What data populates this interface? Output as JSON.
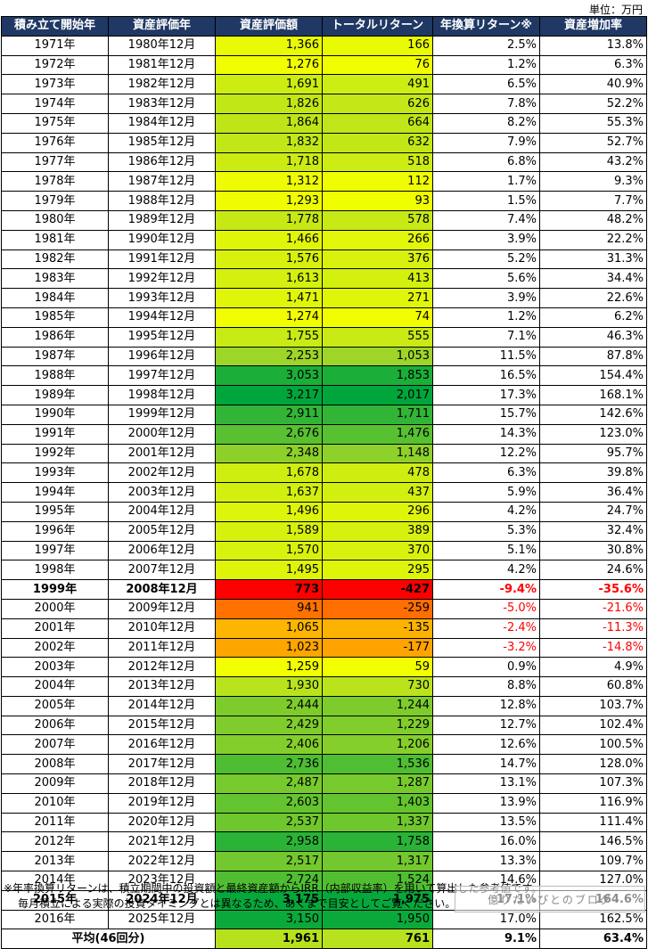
{
  "unit_label": "単位：万円",
  "colors": {
    "header_bg": "#1f3864",
    "negative_text": "#ff0000"
  },
  "chart_data": {
    "type": "table",
    "columns": [
      "積み立て開始年",
      "資産評価年",
      "資産評価額",
      "トータルリターン",
      "年換算リターン※",
      "資産増加率"
    ],
    "rows": [
      {
        "start": "1971年",
        "eval": "1980年12月",
        "value": 1366,
        "ret": 166,
        "annual": "2.5%",
        "growth": "13.8%",
        "bold": false
      },
      {
        "start": "1972年",
        "eval": "1981年12月",
        "value": 1276,
        "ret": 76,
        "annual": "1.2%",
        "growth": "6.3%",
        "bold": false
      },
      {
        "start": "1973年",
        "eval": "1982年12月",
        "value": 1691,
        "ret": 491,
        "annual": "6.5%",
        "growth": "40.9%",
        "bold": false
      },
      {
        "start": "1974年",
        "eval": "1983年12月",
        "value": 1826,
        "ret": 626,
        "annual": "7.8%",
        "growth": "52.2%",
        "bold": false
      },
      {
        "start": "1975年",
        "eval": "1984年12月",
        "value": 1864,
        "ret": 664,
        "annual": "8.2%",
        "growth": "55.3%",
        "bold": false
      },
      {
        "start": "1976年",
        "eval": "1985年12月",
        "value": 1832,
        "ret": 632,
        "annual": "7.9%",
        "growth": "52.7%",
        "bold": false
      },
      {
        "start": "1977年",
        "eval": "1986年12月",
        "value": 1718,
        "ret": 518,
        "annual": "6.8%",
        "growth": "43.2%",
        "bold": false
      },
      {
        "start": "1978年",
        "eval": "1987年12月",
        "value": 1312,
        "ret": 112,
        "annual": "1.7%",
        "growth": "9.3%",
        "bold": false
      },
      {
        "start": "1979年",
        "eval": "1988年12月",
        "value": 1293,
        "ret": 93,
        "annual": "1.5%",
        "growth": "7.7%",
        "bold": false
      },
      {
        "start": "1980年",
        "eval": "1989年12月",
        "value": 1778,
        "ret": 578,
        "annual": "7.4%",
        "growth": "48.2%",
        "bold": false
      },
      {
        "start": "1981年",
        "eval": "1990年12月",
        "value": 1466,
        "ret": 266,
        "annual": "3.9%",
        "growth": "22.2%",
        "bold": false
      },
      {
        "start": "1982年",
        "eval": "1991年12月",
        "value": 1576,
        "ret": 376,
        "annual": "5.2%",
        "growth": "31.3%",
        "bold": false
      },
      {
        "start": "1983年",
        "eval": "1992年12月",
        "value": 1613,
        "ret": 413,
        "annual": "5.6%",
        "growth": "34.4%",
        "bold": false
      },
      {
        "start": "1984年",
        "eval": "1993年12月",
        "value": 1471,
        "ret": 271,
        "annual": "3.9%",
        "growth": "22.6%",
        "bold": false
      },
      {
        "start": "1985年",
        "eval": "1994年12月",
        "value": 1274,
        "ret": 74,
        "annual": "1.2%",
        "growth": "6.2%",
        "bold": false
      },
      {
        "start": "1986年",
        "eval": "1995年12月",
        "value": 1755,
        "ret": 555,
        "annual": "7.1%",
        "growth": "46.3%",
        "bold": false
      },
      {
        "start": "1987年",
        "eval": "1996年12月",
        "value": 2253,
        "ret": 1053,
        "annual": "11.5%",
        "growth": "87.8%",
        "bold": false
      },
      {
        "start": "1988年",
        "eval": "1997年12月",
        "value": 3053,
        "ret": 1853,
        "annual": "16.5%",
        "growth": "154.4%",
        "bold": false
      },
      {
        "start": "1989年",
        "eval": "1998年12月",
        "value": 3217,
        "ret": 2017,
        "annual": "17.3%",
        "growth": "168.1%",
        "bold": false
      },
      {
        "start": "1990年",
        "eval": "1999年12月",
        "value": 2911,
        "ret": 1711,
        "annual": "15.7%",
        "growth": "142.6%",
        "bold": false
      },
      {
        "start": "1991年",
        "eval": "2000年12月",
        "value": 2676,
        "ret": 1476,
        "annual": "14.3%",
        "growth": "123.0%",
        "bold": false
      },
      {
        "start": "1992年",
        "eval": "2001年12月",
        "value": 2348,
        "ret": 1148,
        "annual": "12.2%",
        "growth": "95.7%",
        "bold": false
      },
      {
        "start": "1993年",
        "eval": "2002年12月",
        "value": 1678,
        "ret": 478,
        "annual": "6.3%",
        "growth": "39.8%",
        "bold": false
      },
      {
        "start": "1994年",
        "eval": "2003年12月",
        "value": 1637,
        "ret": 437,
        "annual": "5.9%",
        "growth": "36.4%",
        "bold": false
      },
      {
        "start": "1995年",
        "eval": "2004年12月",
        "value": 1496,
        "ret": 296,
        "annual": "4.2%",
        "growth": "24.7%",
        "bold": false
      },
      {
        "start": "1996年",
        "eval": "2005年12月",
        "value": 1589,
        "ret": 389,
        "annual": "5.3%",
        "growth": "32.4%",
        "bold": false
      },
      {
        "start": "1997年",
        "eval": "2006年12月",
        "value": 1570,
        "ret": 370,
        "annual": "5.1%",
        "growth": "30.8%",
        "bold": false
      },
      {
        "start": "1998年",
        "eval": "2007年12月",
        "value": 1495,
        "ret": 295,
        "annual": "4.2%",
        "growth": "24.6%",
        "bold": false
      },
      {
        "start": "1999年",
        "eval": "2008年12月",
        "value": 773,
        "ret": -427,
        "annual": "-9.4%",
        "growth": "-35.6%",
        "bold": true
      },
      {
        "start": "2000年",
        "eval": "2009年12月",
        "value": 941,
        "ret": -259,
        "annual": "-5.0%",
        "growth": "-21.6%",
        "bold": false
      },
      {
        "start": "2001年",
        "eval": "2010年12月",
        "value": 1065,
        "ret": -135,
        "annual": "-2.4%",
        "growth": "-11.3%",
        "bold": false
      },
      {
        "start": "2002年",
        "eval": "2011年12月",
        "value": 1023,
        "ret": -177,
        "annual": "-3.2%",
        "growth": "-14.8%",
        "bold": false
      },
      {
        "start": "2003年",
        "eval": "2012年12月",
        "value": 1259,
        "ret": 59,
        "annual": "0.9%",
        "growth": "4.9%",
        "bold": false
      },
      {
        "start": "2004年",
        "eval": "2013年12月",
        "value": 1930,
        "ret": 730,
        "annual": "8.8%",
        "growth": "60.8%",
        "bold": false
      },
      {
        "start": "2005年",
        "eval": "2014年12月",
        "value": 2444,
        "ret": 1244,
        "annual": "12.8%",
        "growth": "103.7%",
        "bold": false
      },
      {
        "start": "2006年",
        "eval": "2015年12月",
        "value": 2429,
        "ret": 1229,
        "annual": "12.7%",
        "growth": "102.4%",
        "bold": false
      },
      {
        "start": "2007年",
        "eval": "2016年12月",
        "value": 2406,
        "ret": 1206,
        "annual": "12.6%",
        "growth": "100.5%",
        "bold": false
      },
      {
        "start": "2008年",
        "eval": "2017年12月",
        "value": 2736,
        "ret": 1536,
        "annual": "14.7%",
        "growth": "128.0%",
        "bold": false
      },
      {
        "start": "2009年",
        "eval": "2018年12月",
        "value": 2487,
        "ret": 1287,
        "annual": "13.1%",
        "growth": "107.3%",
        "bold": false
      },
      {
        "start": "2010年",
        "eval": "2019年12月",
        "value": 2603,
        "ret": 1403,
        "annual": "13.9%",
        "growth": "116.9%",
        "bold": false
      },
      {
        "start": "2011年",
        "eval": "2020年12月",
        "value": 2537,
        "ret": 1337,
        "annual": "13.5%",
        "growth": "111.4%",
        "bold": false
      },
      {
        "start": "2012年",
        "eval": "2021年12月",
        "value": 2958,
        "ret": 1758,
        "annual": "16.0%",
        "growth": "146.5%",
        "bold": false
      },
      {
        "start": "2013年",
        "eval": "2022年12月",
        "value": 2517,
        "ret": 1317,
        "annual": "13.3%",
        "growth": "109.7%",
        "bold": false
      },
      {
        "start": "2014年",
        "eval": "2023年12月",
        "value": 2724,
        "ret": 1524,
        "annual": "14.6%",
        "growth": "127.0%",
        "bold": false
      },
      {
        "start": "2015年",
        "eval": "2024年12月",
        "value": 3175,
        "ret": 1975,
        "annual": "17.1%",
        "growth": "164.6%",
        "bold": true
      },
      {
        "start": "2016年",
        "eval": "2025年12月",
        "value": 3150,
        "ret": 1950,
        "annual": "17.0%",
        "growth": "162.5%",
        "bold": false
      }
    ],
    "average": {
      "label": "平均(46回分)",
      "value": 1961,
      "ret": 761,
      "annual": "9.1%",
      "growth": "63.4%"
    }
  },
  "footnote": {
    "line1": "※年率換算リターンは、積立期間中の投資額と最終資産額からIRR（内部収益率）を用いて算出した参考値です。",
    "line2": "毎月積立による実際の投資タイミングとは異なるため、あくまで目安としてご覧ください。"
  },
  "watermark": "億りたいぴとのブログ"
}
